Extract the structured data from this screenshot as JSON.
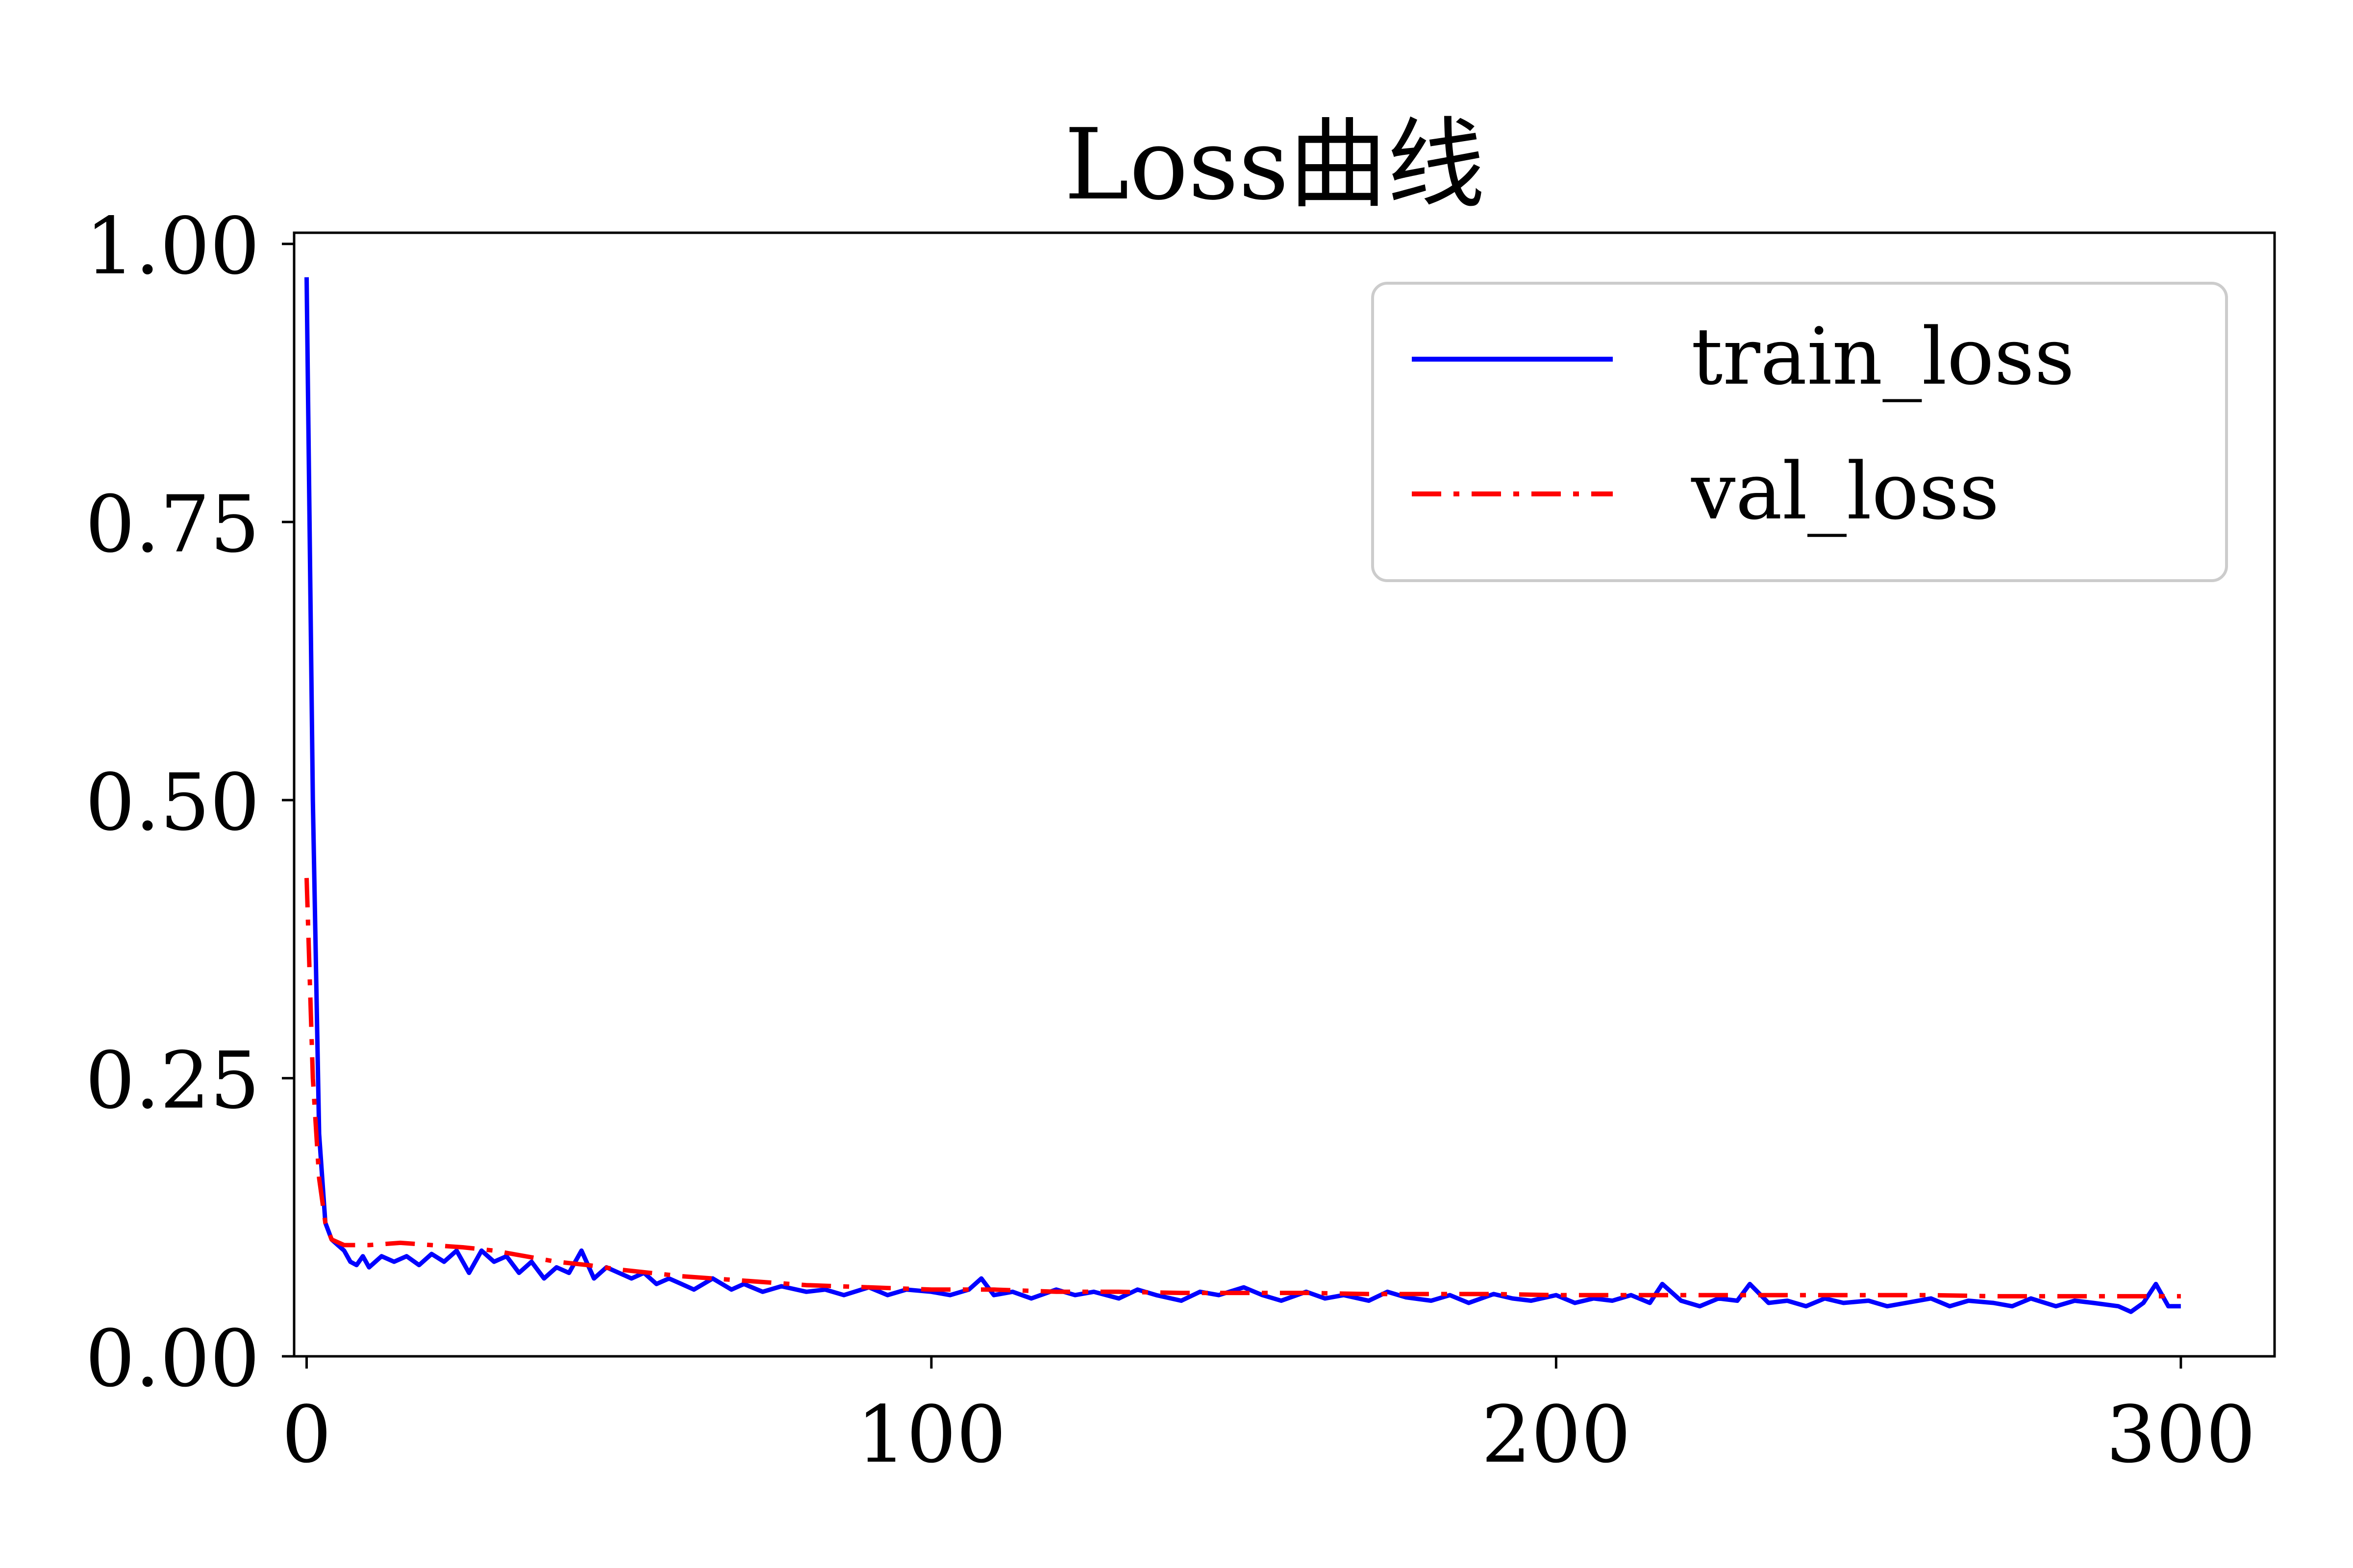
{
  "chart_data": {
    "type": "line",
    "title": "Loss曲线",
    "xlabel": "",
    "ylabel": "",
    "xlim": [
      -2,
      315
    ],
    "ylim": [
      0,
      1.01
    ],
    "xticks": [
      0,
      100,
      200,
      300
    ],
    "xtick_labels": [
      "0",
      "100",
      "200",
      "300"
    ],
    "yticks": [
      0,
      0.25,
      0.5,
      0.75,
      1.0
    ],
    "ytick_labels": [
      "0.00",
      "0.25",
      "0.50",
      "0.75",
      "1.00"
    ],
    "grid": false,
    "legend": {
      "position": "top-right"
    },
    "series": [
      {
        "name": "train_loss",
        "color": "#0000ff",
        "style": "solid",
        "points": [
          [
            0,
            0.97
          ],
          [
            1,
            0.5
          ],
          [
            2,
            0.2
          ],
          [
            3,
            0.12
          ],
          [
            4,
            0.105
          ],
          [
            5,
            0.1
          ],
          [
            6,
            0.095
          ],
          [
            7,
            0.085
          ],
          [
            8,
            0.082
          ],
          [
            9,
            0.09
          ],
          [
            10,
            0.08
          ],
          [
            12,
            0.09
          ],
          [
            14,
            0.085
          ],
          [
            16,
            0.09
          ],
          [
            18,
            0.082
          ],
          [
            20,
            0.092
          ],
          [
            22,
            0.085
          ],
          [
            24,
            0.095
          ],
          [
            26,
            0.075
          ],
          [
            28,
            0.095
          ],
          [
            30,
            0.085
          ],
          [
            32,
            0.09
          ],
          [
            34,
            0.075
          ],
          [
            36,
            0.085
          ],
          [
            38,
            0.07
          ],
          [
            40,
            0.08
          ],
          [
            42,
            0.075
          ],
          [
            44,
            0.095
          ],
          [
            46,
            0.07
          ],
          [
            48,
            0.08
          ],
          [
            50,
            0.075
          ],
          [
            52,
            0.07
          ],
          [
            54,
            0.075
          ],
          [
            56,
            0.065
          ],
          [
            58,
            0.07
          ],
          [
            60,
            0.065
          ],
          [
            62,
            0.06
          ],
          [
            65,
            0.07
          ],
          [
            68,
            0.06
          ],
          [
            70,
            0.065
          ],
          [
            73,
            0.058
          ],
          [
            76,
            0.063
          ],
          [
            80,
            0.058
          ],
          [
            83,
            0.06
          ],
          [
            86,
            0.055
          ],
          [
            90,
            0.062
          ],
          [
            93,
            0.055
          ],
          [
            96,
            0.06
          ],
          [
            100,
            0.058
          ],
          [
            103,
            0.055
          ],
          [
            106,
            0.06
          ],
          [
            108,
            0.07
          ],
          [
            110,
            0.055
          ],
          [
            113,
            0.058
          ],
          [
            116,
            0.052
          ],
          [
            120,
            0.06
          ],
          [
            123,
            0.055
          ],
          [
            126,
            0.058
          ],
          [
            130,
            0.052
          ],
          [
            133,
            0.06
          ],
          [
            136,
            0.055
          ],
          [
            140,
            0.05
          ],
          [
            143,
            0.058
          ],
          [
            146,
            0.055
          ],
          [
            150,
            0.062
          ],
          [
            153,
            0.055
          ],
          [
            156,
            0.05
          ],
          [
            160,
            0.058
          ],
          [
            163,
            0.052
          ],
          [
            166,
            0.055
          ],
          [
            170,
            0.05
          ],
          [
            173,
            0.058
          ],
          [
            176,
            0.053
          ],
          [
            180,
            0.05
          ],
          [
            183,
            0.055
          ],
          [
            186,
            0.048
          ],
          [
            190,
            0.056
          ],
          [
            193,
            0.052
          ],
          [
            196,
            0.05
          ],
          [
            200,
            0.055
          ],
          [
            203,
            0.048
          ],
          [
            206,
            0.052
          ],
          [
            209,
            0.05
          ],
          [
            212,
            0.055
          ],
          [
            215,
            0.048
          ],
          [
            217,
            0.065
          ],
          [
            220,
            0.05
          ],
          [
            223,
            0.045
          ],
          [
            226,
            0.052
          ],
          [
            229,
            0.05
          ],
          [
            231,
            0.065
          ],
          [
            234,
            0.048
          ],
          [
            237,
            0.05
          ],
          [
            240,
            0.045
          ],
          [
            243,
            0.052
          ],
          [
            246,
            0.048
          ],
          [
            250,
            0.05
          ],
          [
            253,
            0.045
          ],
          [
            256,
            0.048
          ],
          [
            260,
            0.052
          ],
          [
            263,
            0.045
          ],
          [
            266,
            0.05
          ],
          [
            270,
            0.048
          ],
          [
            273,
            0.045
          ],
          [
            276,
            0.052
          ],
          [
            280,
            0.045
          ],
          [
            283,
            0.05
          ],
          [
            286,
            0.048
          ],
          [
            290,
            0.045
          ],
          [
            292,
            0.04
          ],
          [
            294,
            0.048
          ],
          [
            296,
            0.065
          ],
          [
            298,
            0.045
          ],
          [
            300,
            0.045
          ]
        ]
      },
      {
        "name": "val_loss",
        "color": "#ff0000",
        "style": "dashdot",
        "points": [
          [
            0,
            0.43
          ],
          [
            1,
            0.25
          ],
          [
            2,
            0.16
          ],
          [
            3,
            0.12
          ],
          [
            4,
            0.105
          ],
          [
            6,
            0.1
          ],
          [
            10,
            0.1
          ],
          [
            15,
            0.102
          ],
          [
            20,
            0.1
          ],
          [
            25,
            0.098
          ],
          [
            30,
            0.095
          ],
          [
            35,
            0.09
          ],
          [
            40,
            0.085
          ],
          [
            45,
            0.082
          ],
          [
            50,
            0.078
          ],
          [
            55,
            0.075
          ],
          [
            60,
            0.072
          ],
          [
            65,
            0.07
          ],
          [
            70,
            0.068
          ],
          [
            75,
            0.066
          ],
          [
            80,
            0.064
          ],
          [
            85,
            0.063
          ],
          [
            90,
            0.062
          ],
          [
            95,
            0.061
          ],
          [
            100,
            0.06
          ],
          [
            110,
            0.06
          ],
          [
            120,
            0.058
          ],
          [
            130,
            0.058
          ],
          [
            140,
            0.057
          ],
          [
            150,
            0.057
          ],
          [
            160,
            0.057
          ],
          [
            170,
            0.056
          ],
          [
            180,
            0.056
          ],
          [
            190,
            0.056
          ],
          [
            200,
            0.055
          ],
          [
            210,
            0.055
          ],
          [
            220,
            0.055
          ],
          [
            230,
            0.055
          ],
          [
            240,
            0.055
          ],
          [
            250,
            0.055
          ],
          [
            260,
            0.055
          ],
          [
            270,
            0.054
          ],
          [
            280,
            0.054
          ],
          [
            290,
            0.054
          ],
          [
            300,
            0.054
          ]
        ]
      }
    ]
  }
}
